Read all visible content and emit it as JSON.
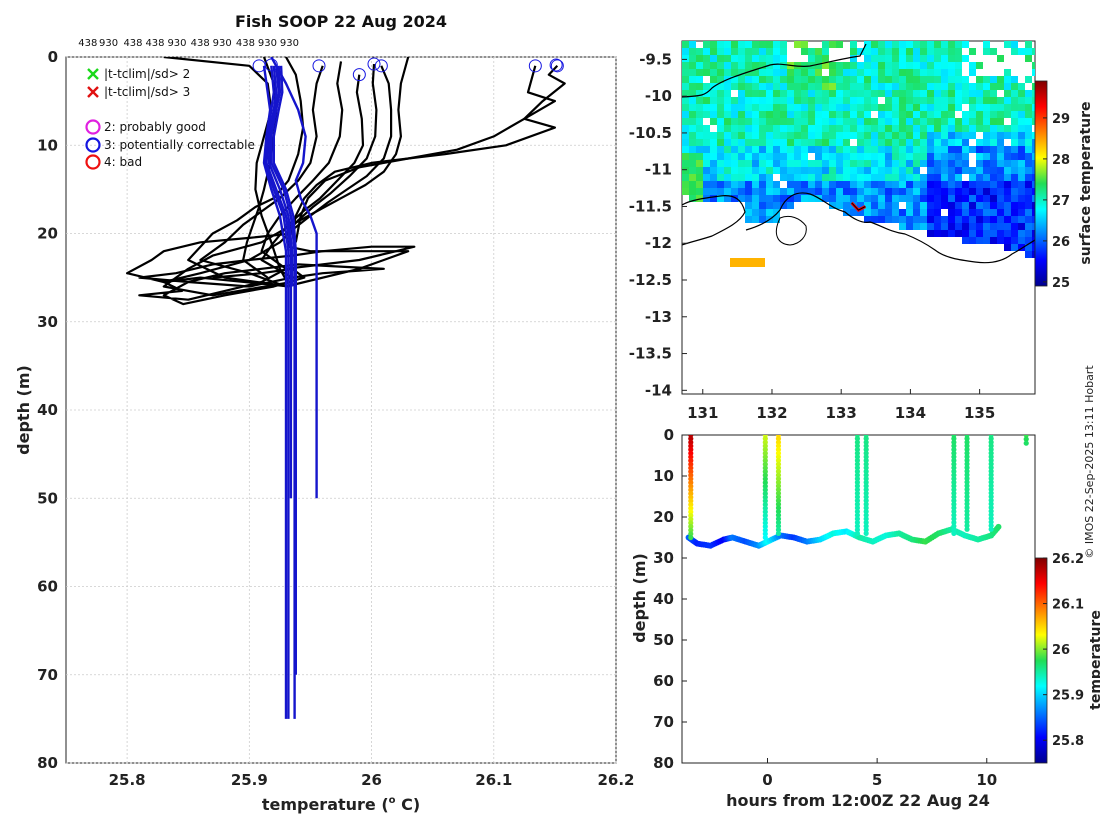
{
  "figure_title": "Fish SOOP 22 Aug 2024",
  "copyright": "© IMOS 22-Sep-2025 13:11 Hobart",
  "chart_data": [
    {
      "id": "profiles",
      "type": "line",
      "xlabel": "temperature (",
      "xlabel_sup": "o",
      "xlabel_end": " C)",
      "ylabel": "depth (m)",
      "xlim": [
        25.75,
        26.2
      ],
      "ylim": [
        0,
        80
      ],
      "xticks": [
        25.8,
        25.9,
        26,
        26.1,
        26.2
      ],
      "xtick_labels": [
        "25.8",
        "25.9",
        "26",
        "26.1",
        "26.2"
      ],
      "yticks": [
        0,
        10,
        20,
        30,
        40,
        50,
        60,
        70,
        80
      ],
      "grid": true,
      "top_labels": [
        "438",
        "930",
        "438",
        "438",
        "930",
        "438",
        "930",
        "438",
        "930",
        "930"
      ],
      "top_label_x": [
        25.76,
        25.777,
        25.797,
        25.815,
        25.833,
        25.852,
        25.87,
        25.889,
        25.907,
        25.925
      ],
      "legend": [
        {
          "marker": "x",
          "color": "#1ad91a",
          "label": "|t-tclim|/sd> 2"
        },
        {
          "marker": "x",
          "color": "#e01010",
          "label": "|t-tclim|/sd> 3"
        },
        {
          "marker": "o",
          "color": "#e020e0",
          "label": "2: probably good"
        },
        {
          "marker": "o",
          "color": "#1515e0",
          "label": "3: potentially correctable"
        },
        {
          "marker": "o",
          "color": "#ee1010",
          "label": "4: bad"
        }
      ],
      "qc_circles": [
        {
          "x": 25.908,
          "y": 1.0
        },
        {
          "x": 25.918,
          "y": 0.9
        },
        {
          "x": 25.957,
          "y": 1.0
        },
        {
          "x": 25.99,
          "y": 2.0
        },
        {
          "x": 26.002,
          "y": 0.8
        },
        {
          "x": 26.008,
          "y": 1.0
        },
        {
          "x": 26.134,
          "y": 1.0
        },
        {
          "x": 26.151,
          "y": 0.9
        },
        {
          "x": 26.152,
          "y": 1.0
        }
      ],
      "black_profiles": [
        {
          "x": [
            25.83,
            25.9,
            25.915,
            25.918,
            25.912,
            25.906,
            25.905,
            25.91,
            25.918,
            25.925,
            25.933
          ],
          "y": [
            0,
            1,
            3,
            6,
            9,
            12,
            15,
            18,
            21,
            24,
            26
          ]
        },
        {
          "x": [
            25.912,
            25.92,
            25.922,
            25.92,
            25.917,
            25.912,
            25.908,
            25.903,
            25.898,
            25.895,
            25.915
          ],
          "y": [
            0,
            3,
            6,
            9,
            12,
            15,
            17,
            19,
            21,
            23,
            25
          ]
        },
        {
          "x": [
            25.93,
            25.938,
            25.942,
            25.944,
            25.94,
            25.932,
            25.92,
            25.905,
            25.89,
            25.87,
            25.85,
            25.88,
            25.933
          ],
          "y": [
            0,
            2,
            5,
            8,
            11,
            14,
            16,
            17,
            18.5,
            20,
            23,
            25,
            26
          ]
        },
        {
          "x": [
            25.96,
            25.955,
            25.952,
            25.955,
            25.95,
            25.94,
            25.925,
            25.91,
            25.895,
            25.88,
            25.86,
            25.9,
            25.93
          ],
          "y": [
            1,
            3,
            6,
            9,
            12,
            14,
            16,
            17.5,
            19,
            21,
            23,
            24.5,
            26
          ]
        },
        {
          "x": [
            25.975,
            25.972,
            25.976,
            25.974,
            25.965,
            25.952,
            25.938,
            25.925,
            25.915,
            25.91,
            25.93
          ],
          "y": [
            0.5,
            3,
            6,
            9,
            12,
            14,
            16,
            18,
            20,
            22,
            24
          ]
        },
        {
          "x": [
            25.99,
            25.988,
            25.992,
            25.993,
            25.986,
            25.972,
            25.958,
            25.944,
            25.932,
            25.92,
            25.91,
            25.935
          ],
          "y": [
            2,
            4,
            7,
            10,
            12,
            14,
            16,
            17.5,
            19,
            21,
            23,
            25
          ]
        },
        {
          "x": [
            26.002,
            26.001,
            26.004,
            26.003,
            25.996,
            25.982,
            25.966,
            25.952,
            25.94,
            25.93,
            25.932,
            25.95,
            25.99,
            26.03,
            25.99,
            25.93
          ],
          "y": [
            0.8,
            3,
            6,
            9,
            11.5,
            13.5,
            15.5,
            17,
            18.5,
            20,
            21.5,
            22,
            22,
            22,
            24,
            26
          ]
        },
        {
          "x": [
            26.008,
            26.014,
            26.016,
            26.016,
            26.01,
            25.996,
            25.98,
            25.964,
            25.95,
            25.936,
            25.925,
            25.9,
            25.86,
            25.83,
            25.86,
            25.933
          ],
          "y": [
            1,
            3,
            6,
            9,
            11.5,
            13.5,
            15,
            16.5,
            18,
            19.5,
            21,
            23,
            24.5,
            25.5,
            25,
            26
          ]
        },
        {
          "x": [
            26.03,
            26.024,
            26.022,
            26.024,
            26.02,
            26.01,
            25.995,
            25.975,
            25.955,
            25.935,
            25.91,
            25.87,
            25.85,
            25.83,
            25.87,
            25.935
          ],
          "y": [
            0,
            3,
            6,
            9,
            11,
            13,
            14.5,
            16,
            17.5,
            19,
            21,
            22.5,
            24,
            26,
            27,
            25.5
          ]
        },
        {
          "x": [
            26.134,
            26.128,
            26.15,
            26.125,
            26.15,
            26.11,
            26.06,
            26.0,
            25.97,
            25.955,
            25.945,
            25.938,
            25.935
          ],
          "y": [
            1,
            4,
            5,
            7,
            8,
            10,
            11,
            12,
            13,
            14.5,
            16,
            18,
            20
          ]
        },
        {
          "x": [
            26.152,
            26.145,
            26.158,
            26.14,
            26.125,
            26.1,
            26.07,
            26.03,
            25.99,
            25.962,
            25.948,
            25.942,
            25.938
          ],
          "y": [
            1,
            2,
            3,
            5,
            7,
            9,
            10.5,
            11.5,
            12.5,
            14,
            16,
            18,
            21
          ]
        }
      ],
      "black_loop": {
        "x": [
          25.935,
          25.9,
          25.86,
          25.83,
          25.82,
          25.8,
          25.83,
          25.845,
          25.81,
          25.85,
          25.88,
          25.91,
          25.93,
          25.96,
          25.99,
          26.02,
          26.035,
          26.0,
          25.96,
          25.935,
          25.9,
          25.87,
          25.84,
          25.81,
          25.85,
          25.9,
          25.935,
          25.96,
          25.99,
          26.01,
          25.98,
          25.94,
          25.91,
          25.88,
          25.85,
          25.83,
          25.846,
          25.88,
          25.92,
          25.945,
          25.935,
          25.91,
          25.87
        ],
        "y": [
          20,
          20.5,
          21,
          22,
          23,
          24.5,
          25.5,
          26.5,
          27,
          27.5,
          26.5,
          25.5,
          24,
          23.5,
          23,
          22,
          21.5,
          21.5,
          22,
          22.5,
          23,
          23.5,
          24.5,
          25,
          25.5,
          26,
          25,
          24.5,
          24.2,
          24,
          23.8,
          23.5,
          24,
          24.5,
          25.5,
          27,
          28,
          27,
          26,
          25,
          24,
          24.5,
          25
        ]
      },
      "blue_profiles": [
        {
          "x": [
            25.912,
            25.915,
            25.917,
            25.914,
            25.912,
            25.918,
            25.925,
            25.93,
            25.93,
            25.93
          ],
          "y": [
            1,
            4,
            6,
            9,
            12,
            15,
            18,
            22,
            26,
            75
          ]
        },
        {
          "x": [
            25.918,
            25.92,
            25.918,
            25.915,
            25.913,
            25.92,
            25.928,
            25.932,
            25.932,
            25.932
          ],
          "y": [
            1,
            4,
            6,
            9,
            12,
            15,
            18,
            22,
            26,
            75
          ]
        },
        {
          "x": [
            25.92,
            25.922,
            25.92,
            25.916,
            25.914,
            25.922,
            25.93,
            25.934,
            25.934,
            25.934
          ],
          "y": [
            1,
            4,
            6,
            9,
            12,
            15,
            18,
            22,
            26,
            50
          ]
        },
        {
          "x": [
            25.922,
            25.924,
            25.921,
            25.917,
            25.916,
            25.925,
            25.932,
            25.935,
            25.935
          ],
          "y": [
            1,
            4,
            6,
            9,
            12,
            15,
            18,
            22,
            26
          ]
        },
        {
          "x": [
            25.924,
            25.925,
            25.922,
            25.918,
            25.918,
            25.928,
            25.934,
            25.937,
            25.937,
            25.937
          ],
          "y": [
            1,
            4,
            6,
            9,
            12,
            15,
            18,
            22,
            26,
            75
          ]
        },
        {
          "x": [
            25.926,
            25.927,
            25.924,
            25.92,
            25.92,
            25.93,
            25.936,
            25.938,
            25.938,
            25.938
          ],
          "y": [
            1,
            4,
            6,
            9,
            12,
            15,
            18,
            22,
            26,
            70
          ]
        },
        {
          "x": [
            25.918,
            25.93,
            25.94,
            25.946,
            25.944,
            25.938,
            25.942,
            25.95,
            25.955,
            25.955,
            25.955
          ],
          "y": [
            0,
            3,
            6,
            9,
            12,
            14,
            16,
            18,
            20,
            26,
            50
          ]
        }
      ]
    },
    {
      "id": "sst_map",
      "type": "heatmap",
      "title": "",
      "xticks": [
        131,
        132,
        133,
        134,
        135
      ],
      "xtick_labels": [
        "131",
        "132",
        "133",
        "134",
        "135"
      ],
      "xlim": [
        130.7,
        135.8
      ],
      "yticks": [
        -9.5,
        -10,
        -10.5,
        -11,
        -11.5,
        -12,
        -12.5,
        -13,
        -13.5,
        -14
      ],
      "ytick_labels": [
        "-9.5",
        "-10",
        "-10.5",
        "-11",
        "-11.5",
        "-12",
        "-12.5",
        "-13",
        "-13.5",
        "-14"
      ],
      "ylim": [
        -14.05,
        -9.25
      ],
      "colorbar_label": "surface temperature",
      "colorbar_range": [
        24.9,
        29.9
      ],
      "colorbar_ticks": [
        25,
        26,
        27,
        28,
        29
      ],
      "colorbar_tick_labels": [
        "25",
        "26",
        "27",
        "28",
        "29"
      ],
      "track_lon": [
        133.15,
        133.25,
        133.35
      ],
      "track_lat": [
        -11.45,
        -11.55,
        -11.5
      ]
    },
    {
      "id": "section",
      "type": "scatter",
      "xlabel": "hours from 12:00Z 22 Aug 24",
      "ylabel": "depth (m)",
      "xlim": [
        -3.9,
        12.2
      ],
      "ylim": [
        0,
        80
      ],
      "xticks": [
        0,
        5,
        10
      ],
      "xtick_labels": [
        "0",
        "5",
        "10"
      ],
      "yticks": [
        0,
        10,
        20,
        30,
        40,
        50,
        60,
        70,
        80
      ],
      "ytick_labels": [
        "0",
        "10",
        "20",
        "30",
        "40",
        "50",
        "60",
        "70",
        "80"
      ],
      "colorbar_label": "temperature",
      "colorbar_range": [
        25.75,
        26.2
      ],
      "colorbar_ticks": [
        25.8,
        25.9,
        26,
        26.1,
        26.2
      ],
      "colorbar_tick_labels": [
        "25.8",
        "25.9",
        "26",
        "26.1",
        "26.2"
      ],
      "casts": [
        {
          "t": -3.5,
          "top": 0,
          "bottom": 25,
          "t0": 26.18,
          "t1": 25.98
        },
        {
          "t": -0.1,
          "top": 0,
          "bottom": 25,
          "t0": 26.02,
          "t1": 25.92
        },
        {
          "t": 0.5,
          "top": 0,
          "bottom": 24,
          "t0": 26.05,
          "t1": 25.95
        },
        {
          "t": 4.1,
          "top": 0,
          "bottom": 24,
          "t0": 25.96,
          "t1": 25.94
        },
        {
          "t": 4.5,
          "top": 0,
          "bottom": 24,
          "t0": 25.96,
          "t1": 25.94
        },
        {
          "t": 8.5,
          "top": 0,
          "bottom": 24,
          "t0": 25.97,
          "t1": 25.94
        },
        {
          "t": 9.1,
          "top": 0,
          "bottom": 23,
          "t0": 25.97,
          "t1": 25.95
        },
        {
          "t": 10.2,
          "top": 0,
          "bottom": 23,
          "t0": 25.96,
          "t1": 25.94
        },
        {
          "t": 11.8,
          "top": 0,
          "bottom": 2,
          "t0": 25.98,
          "t1": 25.97
        }
      ],
      "bottom_track": {
        "t": [
          -3.6,
          -3.2,
          -2.6,
          -2.0,
          -1.6,
          -1.0,
          -0.4,
          0.0,
          0.6,
          1.2,
          1.8,
          2.4,
          3.0,
          3.6,
          4.2,
          4.8,
          5.4,
          6.0,
          6.6,
          7.2,
          7.8,
          8.4,
          9.0,
          9.6,
          10.2,
          10.6
        ],
        "d": [
          25,
          26.5,
          27,
          25.5,
          25,
          26,
          27,
          26,
          24.5,
          25,
          26,
          25.5,
          24,
          23.5,
          25,
          26,
          24.5,
          24,
          25.5,
          26,
          24,
          23,
          24.5,
          25.5,
          24.5,
          22
        ],
        "temp": [
          25.85,
          25.82,
          25.83,
          25.8,
          25.86,
          25.84,
          25.87,
          25.92,
          25.86,
          25.83,
          25.86,
          25.9,
          25.93,
          25.91,
          25.95,
          25.94,
          25.93,
          25.95,
          25.96,
          25.98,
          25.97,
          25.95,
          25.94,
          25.95,
          25.96,
          25.97
        ]
      }
    }
  ]
}
